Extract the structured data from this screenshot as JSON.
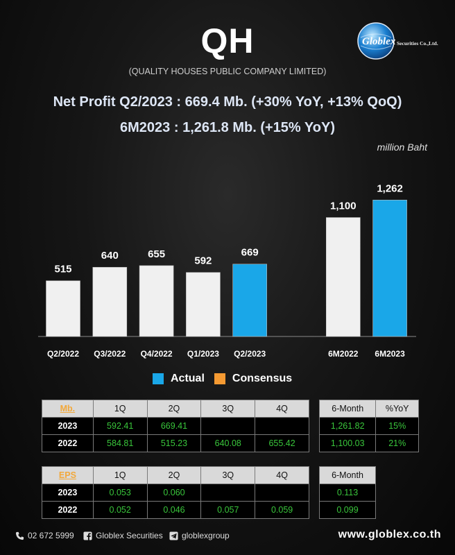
{
  "header": {
    "ticker": "QH",
    "company_name": "(QUALITY HOUSES PUBLIC COMPANY LIMITED)",
    "headline_1": "Net Profit  Q2/2023 : 669.4 Mb. (+30% YoY, +13% QoQ)",
    "headline_2": "6M2023 : 1,261.8 Mb. (+15% YoY)",
    "unit": "million Baht"
  },
  "logo": {
    "text": "Globlex",
    "suffix": "Securities Co.,Ltd."
  },
  "chart_data": {
    "type": "bar",
    "categories": [
      "Q2/2022",
      "Q3/2022",
      "Q4/2022",
      "Q1/2023",
      "Q2/2023",
      "",
      "6M2022",
      "6M2023"
    ],
    "values": [
      515,
      640,
      655,
      592,
      669,
      null,
      1100,
      1262
    ],
    "value_labels": [
      "515",
      "640",
      "655",
      "592",
      "669",
      "",
      "1,100",
      "1,262"
    ],
    "highlight": [
      false,
      false,
      false,
      false,
      true,
      false,
      false,
      true
    ],
    "ylim": [
      0,
      1450
    ],
    "colors": {
      "actual": "#1aa7e8",
      "base": "#f0f0f0",
      "consensus": "#f59a32"
    },
    "legend": [
      {
        "name": "Actual",
        "color": "#1aa7e8"
      },
      {
        "name": "Consensus",
        "color": "#f59a32"
      }
    ],
    "grid": false
  },
  "tables": {
    "profit": {
      "corner": "Mb.",
      "headers": [
        "1Q",
        "2Q",
        "3Q",
        "4Q"
      ],
      "rows": [
        {
          "label": "2023",
          "values": [
            "592.41",
            "669.41",
            "",
            ""
          ]
        },
        {
          "label": "2022",
          "values": [
            "584.81",
            "515.23",
            "640.08",
            "655.42"
          ]
        }
      ]
    },
    "profit_6m": {
      "headers": [
        "6-Month",
        "%YoY"
      ],
      "rows": [
        {
          "values": [
            "1,261.82",
            "15%"
          ]
        },
        {
          "values": [
            "1,100.03",
            "21%"
          ]
        }
      ]
    },
    "eps": {
      "corner": "EPS",
      "headers": [
        "1Q",
        "2Q",
        "3Q",
        "4Q"
      ],
      "rows": [
        {
          "label": "2023",
          "values": [
            "0.053",
            "0.060",
            "",
            ""
          ]
        },
        {
          "label": "2022",
          "values": [
            "0.052",
            "0.046",
            "0.057",
            "0.059"
          ]
        }
      ]
    },
    "eps_6m": {
      "headers": [
        "6-Month"
      ],
      "rows": [
        {
          "values": [
            "0.113"
          ]
        },
        {
          "values": [
            "0.099"
          ]
        }
      ]
    }
  },
  "footer": {
    "phone": "02 672 5999",
    "facebook": "Globlex Securities",
    "telegram": "globlexgroup",
    "website": "www.globlex.co.th",
    "icons": [
      "phone-icon",
      "facebook-icon",
      "telegram-icon"
    ]
  }
}
